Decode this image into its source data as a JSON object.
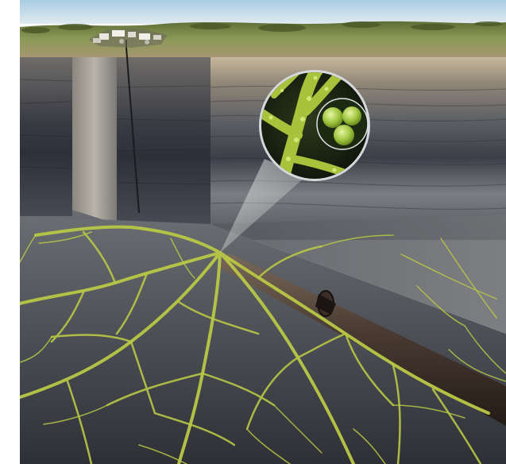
{
  "illustration": {
    "scene": "underground-fracture-network-with-horizontal-well",
    "elements": [
      "surface-facility",
      "vertical-wellbore",
      "horizontal-pipe",
      "fracture-network",
      "magnified-inset",
      "rock-strata"
    ],
    "colors": {
      "sky": "#cfe3ee",
      "grass": "#7f8d4b",
      "soil": "#a4906a",
      "rock_dark": "#3a3d43",
      "rock_mid": "#6c6f73",
      "rock_light": "#b8b3a7",
      "fracture": "#b9c846",
      "pipe": "#4a3b32"
    }
  }
}
